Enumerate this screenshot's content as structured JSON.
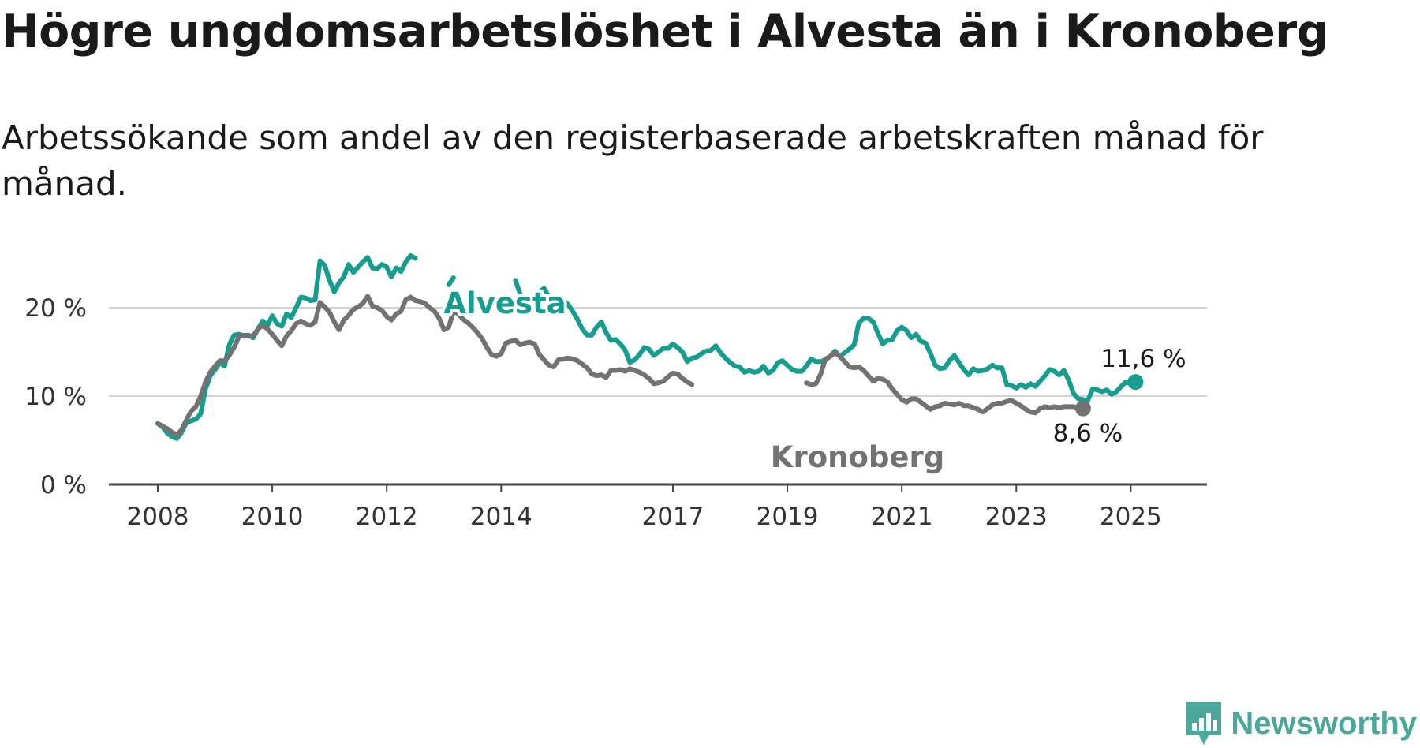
{
  "title": "Högre ungdomsarbetslöshet i Alvesta än i Kronoberg",
  "subtitle": "Arbetssökande som andel av den registerbaserade arbetskraften månad för månad.",
  "brand": {
    "name": "Newsworthy",
    "icon": "newsworthy-logo-icon",
    "color": "#4aa89b"
  },
  "chart_data": {
    "type": "line",
    "x_ticks": [
      "2008",
      "2010",
      "2012",
      "2014",
      "2017",
      "2019",
      "2021",
      "2023",
      "2025"
    ],
    "y_ticks": [
      "0 %",
      "10 %",
      "20 %"
    ],
    "ylim": [
      0,
      25
    ],
    "grid": true,
    "end_labels": {
      "alvesta": "11,6 %",
      "kronoberg": "8,6 %"
    },
    "series": [
      {
        "name": "Alvesta",
        "color": "#159e90",
        "start": "2008-01",
        "values": [
          6.9,
          6.5,
          5.8,
          5.4,
          5.2,
          5.9,
          7.0,
          7.2,
          7.4,
          8.0,
          10.8,
          12.3,
          13.0,
          13.8,
          13.4,
          15.8,
          16.9,
          17.0,
          16.8,
          16.9,
          16.6,
          17.6,
          18.5,
          18.0,
          19.1,
          18.2,
          17.9,
          19.3,
          18.9,
          20.0,
          21.2,
          21.1,
          20.8,
          20.9,
          25.3,
          24.8,
          23.1,
          21.8,
          22.8,
          23.5,
          24.9,
          24.0,
          24.6,
          25.2,
          25.7,
          24.5,
          24.4,
          24.9,
          24.6,
          23.5,
          24.5,
          24.1,
          25.2,
          25.9,
          25.6,
          null,
          null,
          null,
          null,
          null,
          null,
          22.6,
          23.4,
          null,
          null,
          null,
          null,
          null,
          null,
          null,
          null,
          null,
          null,
          null,
          null,
          23.1,
          21.5,
          19.9,
          21.1,
          20.8,
          21.8,
          22.2,
          21.2,
          20.8,
          21.1,
          20.8,
          20.4,
          19.6,
          18.7,
          17.6,
          16.9,
          16.9,
          17.8,
          18.4,
          17.2,
          16.3,
          16.4,
          15.9,
          15.2,
          13.8,
          14.1,
          14.7,
          15.5,
          15.3,
          14.6,
          15.0,
          15.4,
          15.4,
          15.9,
          15.5,
          15.0,
          13.9,
          14.3,
          14.4,
          14.8,
          15.1,
          15.2,
          15.7,
          14.9,
          14.3,
          13.8,
          13.4,
          13.3,
          12.7,
          12.9,
          12.7,
          12.8,
          13.4,
          12.6,
          12.9,
          13.8,
          14.0,
          13.5,
          13.0,
          12.8,
          12.8,
          13.4,
          14.2,
          13.9,
          13.9,
          14.1,
          14.5,
          15.1,
          14.5,
          14.9,
          15.3,
          15.8,
          18.3,
          18.8,
          18.8,
          18.4,
          17.1,
          15.9,
          16.3,
          16.4,
          17.4,
          17.8,
          17.4,
          16.6,
          17.0,
          16.2,
          16.0,
          14.8,
          13.5,
          13.1,
          13.2,
          14.0,
          14.6,
          13.8,
          13.0,
          12.4,
          13.1,
          12.8,
          12.9,
          13.1,
          13.5,
          13.2,
          13.2,
          11.3,
          11.2,
          10.9,
          11.3,
          11.0,
          11.4,
          11.1,
          11.7,
          12.3,
          13.0,
          12.8,
          12.4,
          12.9,
          11.8,
          10.3,
          9.7,
          9.6,
          9.5,
          10.8,
          10.7,
          10.5,
          10.7,
          10.2,
          10.5,
          11.1,
          11.6,
          11.4,
          11.6
        ]
      },
      {
        "name": "Kronoberg",
        "color": "#727272",
        "start": "2008-01",
        "values": [
          6.9,
          6.6,
          6.3,
          5.9,
          5.6,
          6.2,
          7.3,
          8.3,
          8.8,
          10.0,
          11.6,
          12.7,
          13.4,
          14.0,
          14.0,
          14.6,
          15.5,
          16.7,
          16.9,
          16.8,
          16.8,
          17.6,
          18.0,
          17.6,
          17.0,
          16.3,
          15.7,
          16.8,
          17.4,
          18.2,
          18.5,
          18.2,
          18.0,
          18.4,
          20.6,
          20.1,
          19.5,
          18.4,
          17.5,
          18.6,
          19.1,
          19.8,
          20.1,
          20.5,
          21.3,
          20.2,
          20.0,
          19.7,
          19.0,
          18.6,
          19.3,
          19.6,
          20.9,
          21.2,
          20.8,
          20.7,
          20.5,
          20.0,
          19.6,
          18.8,
          17.5,
          17.8,
          19.6,
          19.3,
          18.7,
          18.3,
          17.8,
          17.2,
          16.5,
          15.5,
          14.7,
          14.5,
          14.8,
          16.0,
          16.2,
          16.3,
          15.8,
          16.0,
          16.1,
          15.9,
          14.7,
          14.1,
          13.5,
          13.3,
          14.1,
          14.2,
          14.3,
          14.2,
          14.0,
          13.6,
          13.2,
          12.5,
          12.3,
          12.4,
          12.1,
          12.9,
          12.9,
          13.0,
          12.8,
          13.1,
          12.9,
          12.7,
          12.4,
          12.0,
          11.4,
          11.5,
          11.7,
          12.2,
          12.6,
          12.5,
          12.0,
          11.6,
          11.3,
          null,
          null,
          null,
          null,
          null,
          null,
          null,
          null,
          null,
          null,
          null,
          null,
          null,
          null,
          null,
          null,
          null,
          null,
          null,
          null,
          null,
          null,
          null,
          11.5,
          11.3,
          11.4,
          12.5,
          14.2,
          14.5,
          14.9,
          14.5,
          13.9,
          13.3,
          13.2,
          13.3,
          12.9,
          12.3,
          11.7,
          12.0,
          11.9,
          11.6,
          10.8,
          10.2,
          9.6,
          9.3,
          9.7,
          9.7,
          9.3,
          8.9,
          8.5,
          8.8,
          8.9,
          9.2,
          9.1,
          9.0,
          9.2,
          8.9,
          8.9,
          8.7,
          8.5,
          8.2,
          8.6,
          9.0,
          9.2,
          9.2,
          9.4,
          9.5,
          9.2,
          8.9,
          8.5,
          8.2,
          8.1,
          8.6,
          8.8,
          8.7,
          8.8,
          8.7,
          8.8,
          8.8,
          8.8,
          8.7,
          8.6
        ]
      }
    ]
  }
}
